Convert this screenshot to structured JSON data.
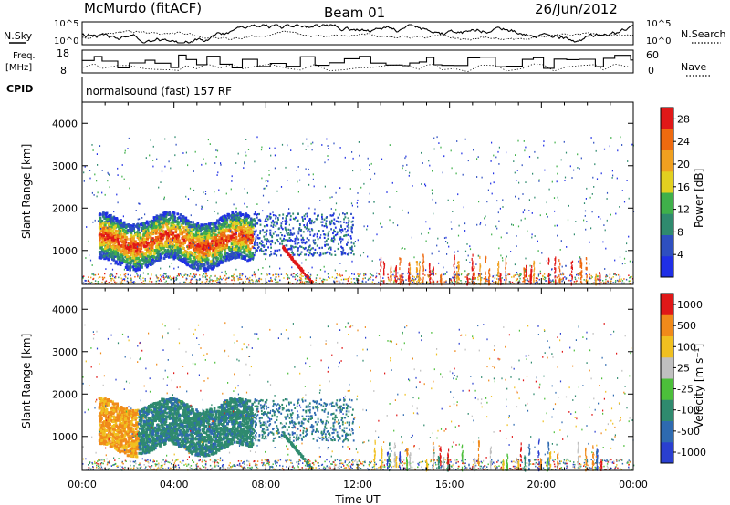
{
  "header": {
    "station": "McMurdo (fitACF)",
    "beam": "Beam 01",
    "date": "26/Jun/2012"
  },
  "summary": {
    "nsky_label": "N.Sky",
    "nsearch_label": "N.Search",
    "freq_label_line1": "Freq.",
    "freq_label_line2": "[MHz]",
    "nave_label": "Nave",
    "cpid_label": "CPID",
    "cpid_value": "normalsound (fast) 157 RF",
    "noise_ticks": [
      "10^5",
      "10^0"
    ],
    "freq_ticks": [
      "18",
      "8"
    ],
    "nave_ticks": [
      "60",
      "0"
    ]
  },
  "chart_data": [
    {
      "type": "heatmap",
      "panel": "power",
      "ylabel": "Slant Range [km]",
      "yticks": [
        1000,
        2000,
        3000,
        4000
      ],
      "ylim": [
        200,
        4500
      ],
      "xlim_hours": [
        0,
        24
      ],
      "colorbar_label": "Power [dB]",
      "colorbar_ticks": [
        4,
        8,
        12,
        16,
        20,
        24,
        28
      ],
      "colorbar_range": [
        0,
        30
      ],
      "colors": [
        "#1f2fe6",
        "#2e4fc0",
        "#2f8a6e",
        "#3fb04a",
        "#e2d020",
        "#f0a020",
        "#ee6a10",
        "#e01818"
      ],
      "groundscatter_color": "#808080"
    },
    {
      "type": "heatmap",
      "panel": "velocity",
      "ylabel": "Slant Range [km]",
      "yticks": [
        1000,
        2000,
        3000,
        4000
      ],
      "ylim": [
        200,
        4500
      ],
      "xlim_hours": [
        0,
        24
      ],
      "colorbar_label": "Velocity [m s⁻¹]",
      "colorbar_ticks": [
        "1000",
        "500",
        "100",
        "25",
        "-25",
        "-100",
        "-500",
        "-1000"
      ],
      "colors": [
        "#2a3fd0",
        "#2e6ab0",
        "#2f8a6e",
        "#4cbf3a",
        "#c0c0c0",
        "#f0c020",
        "#f08a1a",
        "#e01818"
      ],
      "groundscatter_color": "#808080"
    }
  ],
  "time_axis": {
    "ticks": [
      "00:00",
      "04:00",
      "08:00",
      "12:00",
      "16:00",
      "20:00",
      "00:00"
    ],
    "label": "Time UT"
  }
}
